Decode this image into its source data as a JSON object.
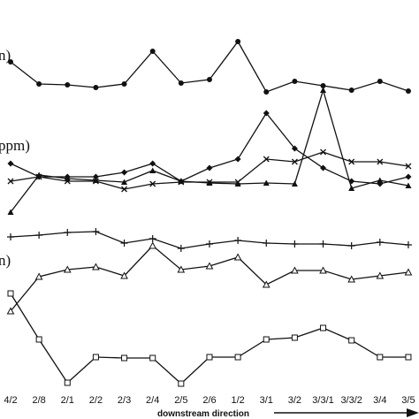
{
  "chart_data": {
    "type": "line",
    "x_label": "downstream direction",
    "annotations": [
      "n)",
      "ppm)",
      "n)"
    ],
    "categories": [
      "4/2",
      "2/8",
      "2/1",
      "2/2",
      "2/3",
      "2/4",
      "2/5",
      "2/6",
      "1/2",
      "3/1",
      "3/2",
      "3/3/1",
      "3/3/2",
      "3/4",
      "3/5"
    ],
    "ylim": [
      0,
      474
    ],
    "series": [
      {
        "marker": "dot",
        "color": "#111111",
        "values": [
          404,
          379,
          378,
          375,
          379,
          416,
          380,
          384,
          427,
          370,
          382,
          377,
          372,
          382,
          371
        ]
      },
      {
        "marker": "diamond",
        "color": "#111111",
        "values": [
          289,
          274,
          274,
          274,
          279,
          289,
          269,
          284,
          294,
          346,
          306,
          284,
          269,
          266,
          274
        ]
      },
      {
        "marker": "cross",
        "color": "#111111",
        "values": [
          269,
          274,
          269,
          269,
          260,
          266,
          268,
          268,
          268,
          294,
          291,
          302,
          291,
          291,
          286
        ]
      },
      {
        "marker": "triangle",
        "color": "#111111",
        "values": [
          234,
          276,
          272,
          270,
          268,
          281,
          269,
          267,
          266,
          267,
          266,
          372,
          261,
          270,
          264
        ]
      },
      {
        "marker": "plus",
        "color": "#111111",
        "values": [
          206,
          208,
          211,
          212,
          199,
          204,
          193,
          198,
          202,
          199,
          198,
          198,
          196,
          200,
          197
        ]
      },
      {
        "marker": "open-triangle",
        "color": "#111111",
        "values": [
          122,
          161,
          169,
          172,
          162,
          196,
          169,
          173,
          183,
          152,
          168,
          168,
          158,
          162,
          166
        ]
      },
      {
        "marker": "square",
        "color": "#111111",
        "values": [
          142,
          90,
          41,
          70,
          69,
          69,
          40,
          70,
          70,
          90,
          92,
          103,
          89,
          70,
          70
        ]
      }
    ]
  }
}
